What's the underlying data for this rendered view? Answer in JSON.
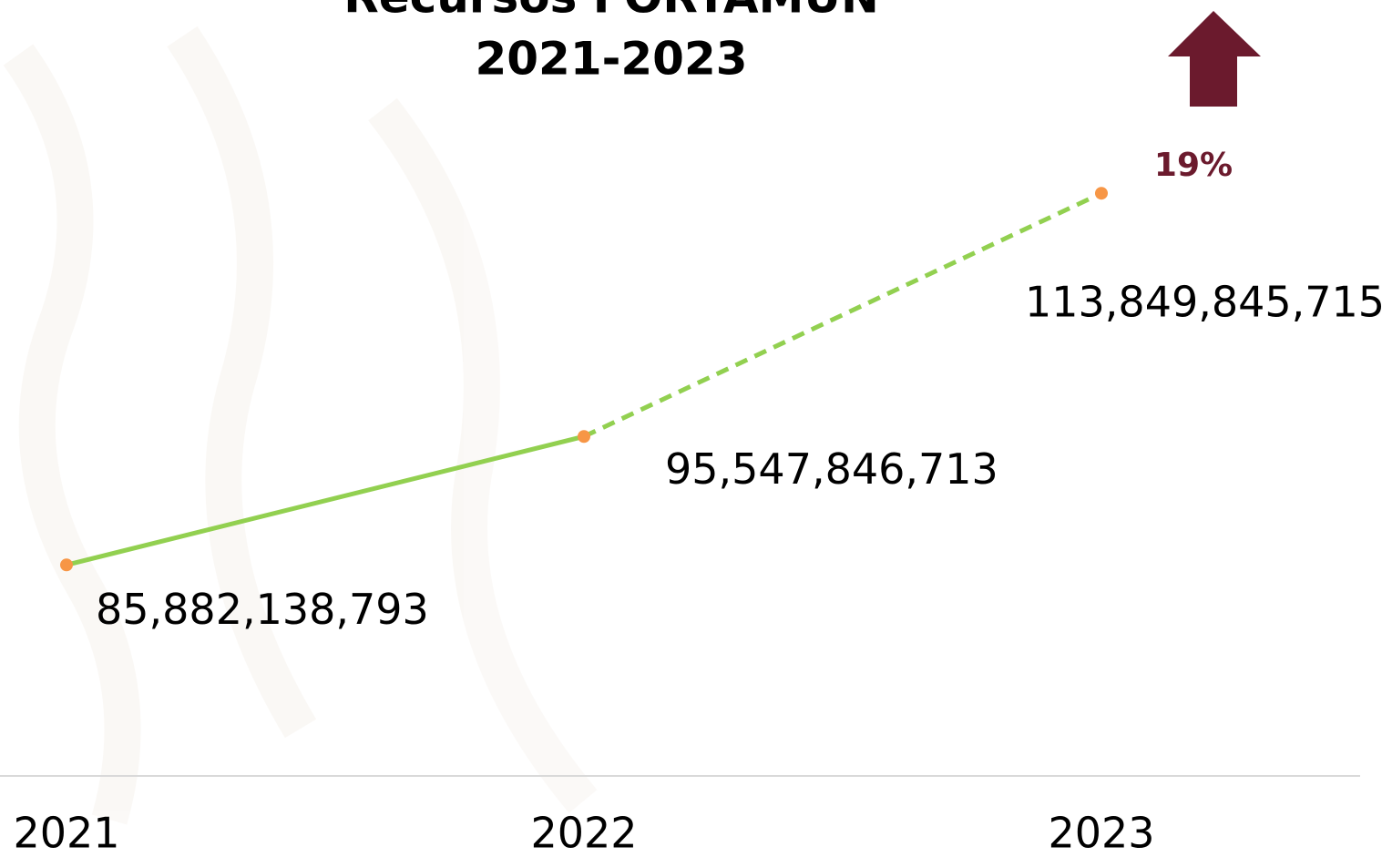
{
  "chart_data": {
    "type": "line",
    "title": [
      "Recursos FORTAMUN",
      "2021-2023"
    ],
    "categories": [
      "2021",
      "2022",
      "2023"
    ],
    "values": [
      85882138793,
      95547846713,
      113849845715
    ],
    "value_labels": [
      "85,882,138,793",
      "95,547,846,713",
      "113,849,845,715"
    ],
    "color": "#92d050",
    "marker_color": "#f79646",
    "segment_styles": [
      "solid",
      "dashed"
    ],
    "ylim": [
      70000000000,
      120000000000
    ],
    "annotation": {
      "text": "19%",
      "color": "#6b1a2d"
    }
  }
}
